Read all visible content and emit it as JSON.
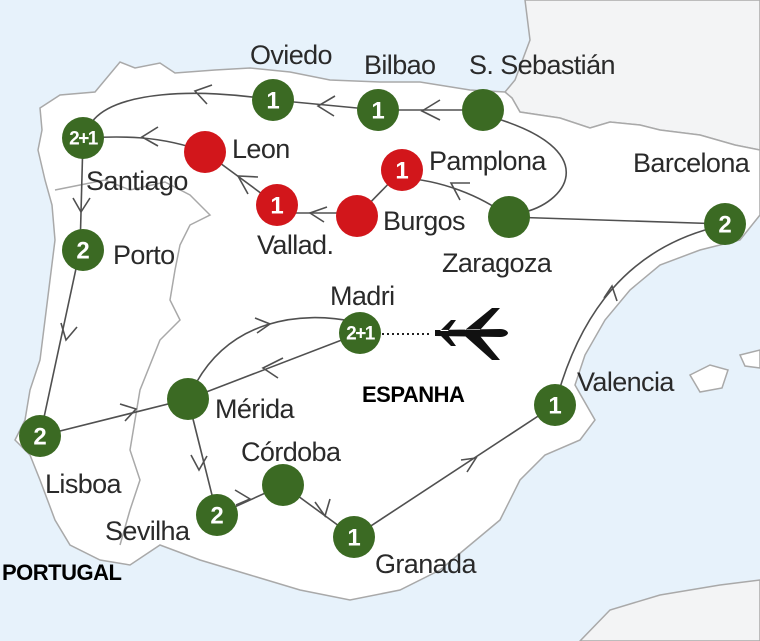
{
  "colors": {
    "sea": "#e7f2fb",
    "land": "#ffffff",
    "neighbor_land": "#f3f4f5",
    "border": "#a9a9a9",
    "green": "#3b6a23",
    "red": "#d2161b",
    "route": "#505050"
  },
  "countries": {
    "spain": "ESPANHA",
    "portugal": "PORTUGAL"
  },
  "stops": [
    {
      "id": "oviedo",
      "name": "Oviedo",
      "nights": "1",
      "color": "green"
    },
    {
      "id": "bilbao",
      "name": "Bilbao",
      "nights": "1",
      "color": "green"
    },
    {
      "id": "sebastian",
      "name": "S. Sebastián",
      "nights": "",
      "color": "green"
    },
    {
      "id": "santiago",
      "name": "Santiago",
      "nights": "2+1",
      "color": "green"
    },
    {
      "id": "leon",
      "name": "Leon",
      "nights": "",
      "color": "red"
    },
    {
      "id": "pamplona",
      "name": "Pamplona",
      "nights": "1",
      "color": "red"
    },
    {
      "id": "burgos",
      "name": "Burgos",
      "nights": "",
      "color": "red"
    },
    {
      "id": "vallad",
      "name": "Vallad.",
      "nights": "1",
      "color": "red"
    },
    {
      "id": "zaragoza",
      "name": "Zaragoza",
      "nights": "",
      "color": "green"
    },
    {
      "id": "barcelona",
      "name": "Barcelona",
      "nights": "2",
      "color": "green"
    },
    {
      "id": "porto",
      "name": "Porto",
      "nights": "2",
      "color": "green"
    },
    {
      "id": "madri",
      "name": "Madri",
      "nights": "2+1",
      "color": "green"
    },
    {
      "id": "merida",
      "name": "Mérida",
      "nights": "",
      "color": "green"
    },
    {
      "id": "lisboa",
      "name": "Lisboa",
      "nights": "2",
      "color": "green"
    },
    {
      "id": "valencia",
      "name": "Valencia",
      "nights": "1",
      "color": "green"
    },
    {
      "id": "cordoba",
      "name": "Córdoba",
      "nights": "",
      "color": "green"
    },
    {
      "id": "sevilha",
      "name": "Sevilha",
      "nights": "2",
      "color": "green"
    },
    {
      "id": "granada",
      "name": "Granada",
      "nights": "1",
      "color": "green"
    }
  ],
  "icons": {
    "flight": "airplane-icon"
  }
}
